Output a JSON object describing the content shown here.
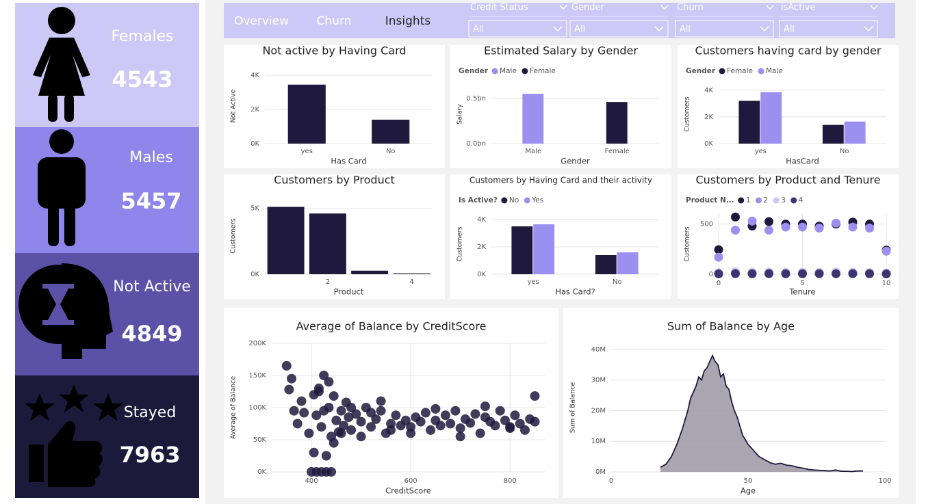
{
  "kpis": [
    {
      "label": "Females",
      "value": 4543
    },
    {
      "label": "Males",
      "value": 5457
    },
    {
      "label": "Not Active",
      "value": 4849
    },
    {
      "label": "Stayed",
      "value": 7963
    }
  ],
  "tabs": [
    "Overview",
    "Churn",
    "Insights"
  ],
  "filters": [
    {
      "label": "Credit Status",
      "value": "All"
    },
    {
      "label": "Gender",
      "value": "All"
    },
    {
      "label": "Churn",
      "value": "All"
    },
    {
      "label": "isActive",
      "value": "All"
    }
  ],
  "chart_data": [
    {
      "type": "bar",
      "title": "Not active by Having Card",
      "xlabel": "Has Card",
      "ylabel": "Not Active",
      "categories": [
        "yes",
        "No"
      ],
      "values": [
        3450,
        1400
      ],
      "color": "#1f1a3d",
      "ylim": [
        0,
        4400
      ],
      "yticks": [
        {
          "value": 0,
          "label": "0K"
        },
        {
          "value": 2000,
          "label": "2K"
        },
        {
          "value": 4000,
          "label": "4K"
        }
      ],
      "grid": true
    },
    {
      "type": "bar",
      "title": "Estimated Salary by Gender",
      "xlabel": "Gender",
      "ylabel": "Salary",
      "legend_title": "Gender",
      "categories": [
        "Male",
        "Female"
      ],
      "series": [
        {
          "name": "Male",
          "color": "#9b8ff0",
          "values": [
            550000000,
            null
          ]
        },
        {
          "name": "Female",
          "color": "#1f1a3d",
          "values": [
            null,
            460000000
          ]
        }
      ],
      "ylim": [
        0,
        650000000
      ],
      "yticks": [
        {
          "value": 0,
          "label": "0.0bn"
        },
        {
          "value": 500000000,
          "label": "0.5bn"
        }
      ],
      "grid": true
    },
    {
      "type": "bar",
      "title": "Customers having card by gender",
      "xlabel": "HasCard",
      "ylabel": "Customers",
      "legend_title": "Gender",
      "categories": [
        "yes",
        "No"
      ],
      "series": [
        {
          "name": "Female",
          "color": "#1f1a3d",
          "values": [
            3200,
            1400
          ]
        },
        {
          "name": "Male",
          "color": "#9b8ff0",
          "values": [
            3850,
            1650
          ]
        }
      ],
      "ylim": [
        0,
        4400
      ],
      "yticks": [
        {
          "value": 0,
          "label": "0K"
        },
        {
          "value": 2000,
          "label": "2K"
        },
        {
          "value": 4000,
          "label": "4K"
        }
      ],
      "grid": true
    },
    {
      "type": "bar",
      "title": "Customers by Product",
      "xlabel": "Product",
      "ylabel": "Customers",
      "categories": [
        null,
        "2",
        null,
        "4"
      ],
      "values": [
        5100,
        4600,
        270,
        60
      ],
      "color": "#1f1a3d",
      "ylim": [
        0,
        5800
      ],
      "yticks": [
        {
          "value": 0,
          "label": "0K"
        },
        {
          "value": 5000,
          "label": "5K"
        }
      ],
      "grid": true
    },
    {
      "type": "bar",
      "title": "Customers by Having Card and their activity",
      "xlabel": "Has Card?",
      "ylabel": "Customers",
      "legend_title": "Is Active?",
      "categories": [
        "yes",
        "No"
      ],
      "series": [
        {
          "name": "No",
          "color": "#1f1a3d",
          "values": [
            3500,
            1400
          ]
        },
        {
          "name": "Yes",
          "color": "#9b8ff0",
          "values": [
            3650,
            1600
          ]
        }
      ],
      "ylim": [
        0,
        4400
      ],
      "yticks": [
        {
          "value": 0,
          "label": "0K"
        },
        {
          "value": 2000,
          "label": "2K"
        },
        {
          "value": 4000,
          "label": "4K"
        }
      ],
      "grid": true
    },
    {
      "type": "scatter",
      "title": "Customers by Product and Tenure",
      "xlabel": "Tenure",
      "ylabel": "Customers",
      "legend_title": "Product N...",
      "x": [
        0,
        1,
        2,
        3,
        4,
        5,
        6,
        7,
        8,
        9,
        10
      ],
      "series": [
        {
          "name": "1",
          "color": "#1f1a3d",
          "values": [
            245,
            570,
            480,
            525,
            500,
            500,
            480,
            500,
            520,
            500,
            240
          ]
        },
        {
          "name": "2",
          "color": "#9b8ff0",
          "values": [
            170,
            440,
            530,
            440,
            470,
            470,
            460,
            510,
            470,
            460,
            230
          ]
        },
        {
          "name": "3",
          "color": "#cdc9f7",
          "values": [
            15,
            25,
            20,
            22,
            18,
            20,
            19,
            21,
            20,
            18,
            12
          ]
        },
        {
          "name": "4",
          "color": "#3d3570",
          "values": [
            4,
            6,
            5,
            6,
            5,
            5,
            6,
            5,
            6,
            5,
            3
          ]
        }
      ],
      "xlim": [
        0,
        10
      ],
      "xticks": [
        0,
        5,
        10
      ],
      "ylim": [
        0,
        600
      ],
      "yticks": [
        0,
        500
      ],
      "grid": true
    },
    {
      "type": "scatter",
      "title": "Average of Balance by CreditScore",
      "xlabel": "CreditScore",
      "ylabel": "Average of Balance",
      "color": "#1f1a3d",
      "x": [
        350,
        355,
        360,
        365,
        372,
        380,
        385,
        395,
        400,
        405,
        410,
        415,
        420,
        425,
        430,
        435,
        440,
        445,
        450,
        455,
        460,
        465,
        470,
        475,
        480,
        490,
        500,
        510,
        520,
        530,
        540,
        550,
        560,
        570,
        580,
        590,
        600,
        610,
        620,
        630,
        640,
        650,
        660,
        670,
        680,
        690,
        700,
        710,
        720,
        730,
        740,
        750,
        760,
        770,
        780,
        790,
        800,
        810,
        820,
        830,
        840,
        850,
        405,
        415,
        425,
        435,
        445,
        460,
        480,
        500,
        520,
        540,
        560,
        600,
        650,
        700,
        750,
        800,
        850,
        410,
        420,
        430,
        440
      ],
      "values": [
        165000,
        128000,
        145000,
        95000,
        75000,
        110000,
        92000,
        60000,
        0,
        120000,
        88000,
        130000,
        70000,
        150000,
        0,
        100000,
        55000,
        118000,
        80000,
        62000,
        95000,
        72000,
        108000,
        85000,
        65000,
        90000,
        78000,
        100000,
        70000,
        82000,
        95000,
        60000,
        75000,
        88000,
        72000,
        80000,
        70000,
        85000,
        78000,
        92000,
        65000,
        80000,
        72000,
        88000,
        75000,
        95000,
        68000,
        82000,
        76000,
        90000,
        60000,
        85000,
        78000,
        72000,
        95000,
        80000,
        70000,
        88000,
        75000,
        65000,
        82000,
        78000,
        30000,
        125000,
        95000,
        140000,
        45000,
        60000,
        100000,
        55000,
        92000,
        110000,
        65000,
        60000,
        98000,
        55000,
        102000,
        68000,
        118000,
        0,
        0,
        25000,
        0
      ],
      "xlim": [
        320,
        870
      ],
      "xticks": [
        400,
        600,
        800
      ],
      "ylim": [
        0,
        200000
      ],
      "yticks": [
        {
          "value": 0,
          "label": "0K"
        },
        {
          "value": 50000,
          "label": "50K"
        },
        {
          "value": 100000,
          "label": "100K"
        },
        {
          "value": 150000,
          "label": "150K"
        },
        {
          "value": 200000,
          "label": "200K"
        }
      ],
      "grid": true
    },
    {
      "type": "area",
      "title": "Sum of Balance by Age",
      "xlabel": "Age",
      "ylabel": "Sum of Balance",
      "color": "#9a97a4",
      "x": [
        18,
        20,
        22,
        24,
        26,
        28,
        29,
        30,
        31,
        32,
        33,
        34,
        35,
        36,
        37,
        38,
        39,
        40,
        41,
        42,
        43,
        44,
        45,
        46,
        47,
        48,
        50,
        52,
        54,
        56,
        58,
        60,
        62,
        64,
        66,
        68,
        70,
        72,
        74,
        76,
        78,
        80,
        82,
        84,
        86,
        88,
        90,
        92
      ],
      "values": [
        1500000,
        2500000,
        5000000,
        9000000,
        14000000,
        20000000,
        24000000,
        26000000,
        28000000,
        31000000,
        30000000,
        33000000,
        34000000,
        36000000,
        38000000,
        36000000,
        35000000,
        31000000,
        32000000,
        28000000,
        27000000,
        23000000,
        20000000,
        18000000,
        15000000,
        12000000,
        9000000,
        7000000,
        5000000,
        4000000,
        3000000,
        2500000,
        2800000,
        2200000,
        2000000,
        1500000,
        1200000,
        800000,
        600000,
        500000,
        400000,
        300000,
        600000,
        200000,
        200000,
        100000,
        300000,
        300000
      ],
      "xlim": [
        0,
        100
      ],
      "xticks": [
        0,
        50,
        100
      ],
      "ylim": [
        0,
        42000000
      ],
      "yticks": [
        {
          "value": 0,
          "label": "0M"
        },
        {
          "value": 10000000,
          "label": "10M"
        },
        {
          "value": 20000000,
          "label": "20M"
        },
        {
          "value": 30000000,
          "label": "30M"
        },
        {
          "value": 40000000,
          "label": "40M"
        }
      ],
      "grid": true
    }
  ]
}
